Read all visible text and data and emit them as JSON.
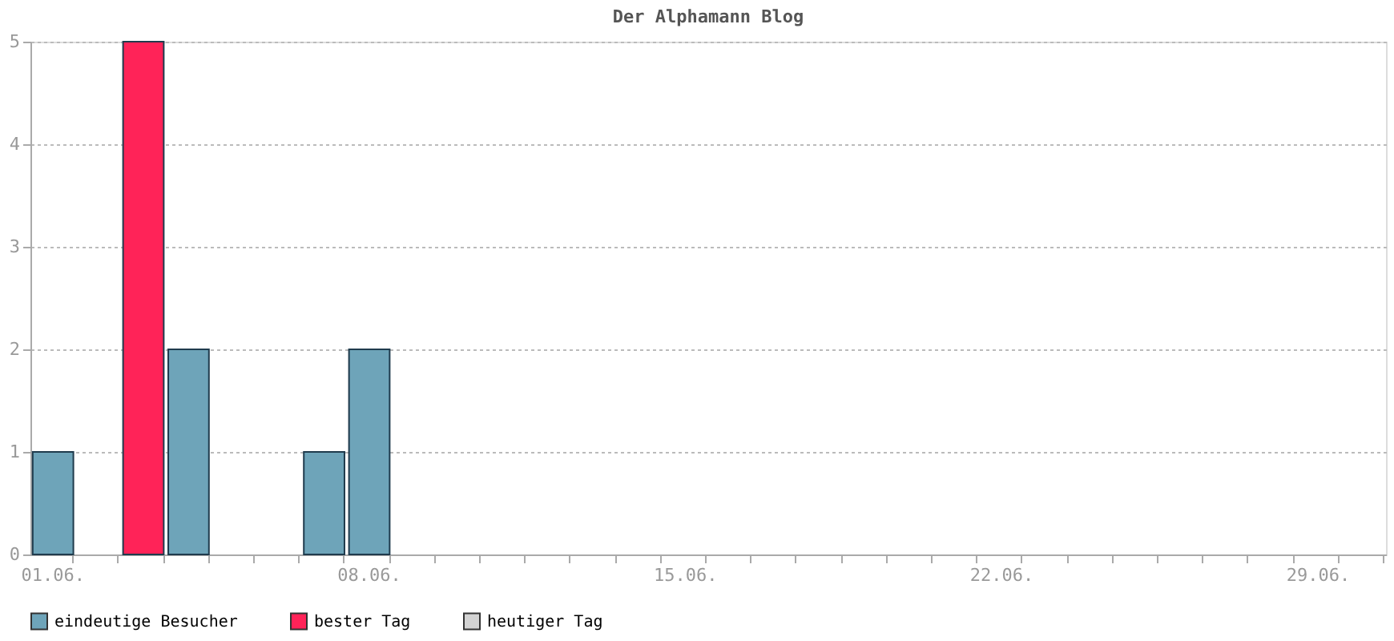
{
  "chart_data": {
    "type": "bar",
    "title": "Der Alphamann Blog",
    "categories": [
      "01.06.",
      null,
      null,
      null,
      null,
      null,
      null,
      "08.06.",
      null,
      null,
      null,
      null,
      null,
      null,
      "15.06.",
      null,
      null,
      null,
      null,
      null,
      null,
      "22.06.",
      null,
      null,
      null,
      null,
      null,
      null,
      "29.06.",
      null
    ],
    "series": [
      {
        "name": "eindeutige Besucher",
        "color": "#6ea4b9",
        "values": [
          1,
          null,
          null,
          2,
          null,
          null,
          1,
          2,
          null,
          null,
          null,
          null,
          null,
          null,
          null,
          null,
          null,
          null,
          null,
          null,
          null,
          null,
          null,
          null,
          null,
          null,
          null,
          null,
          null,
          null
        ]
      },
      {
        "name": "bester Tag",
        "color": "#ff2358",
        "values": [
          null,
          null,
          5,
          null,
          null,
          null,
          null,
          null,
          null,
          null,
          null,
          null,
          null,
          null,
          null,
          null,
          null,
          null,
          null,
          null,
          null,
          null,
          null,
          null,
          null,
          null,
          null,
          null,
          null,
          null
        ]
      },
      {
        "name": "heutiger Tag",
        "color": "#d3d3d3",
        "values": [
          null,
          null,
          null,
          null,
          null,
          null,
          null,
          null,
          null,
          null,
          null,
          null,
          null,
          null,
          null,
          null,
          null,
          null,
          null,
          null,
          null,
          null,
          null,
          null,
          null,
          null,
          null,
          null,
          null,
          null
        ]
      }
    ],
    "ylim": [
      0,
      5
    ],
    "yticks": [
      0,
      1,
      2,
      3,
      4,
      5
    ],
    "grid": "y",
    "legend": "bottom"
  }
}
